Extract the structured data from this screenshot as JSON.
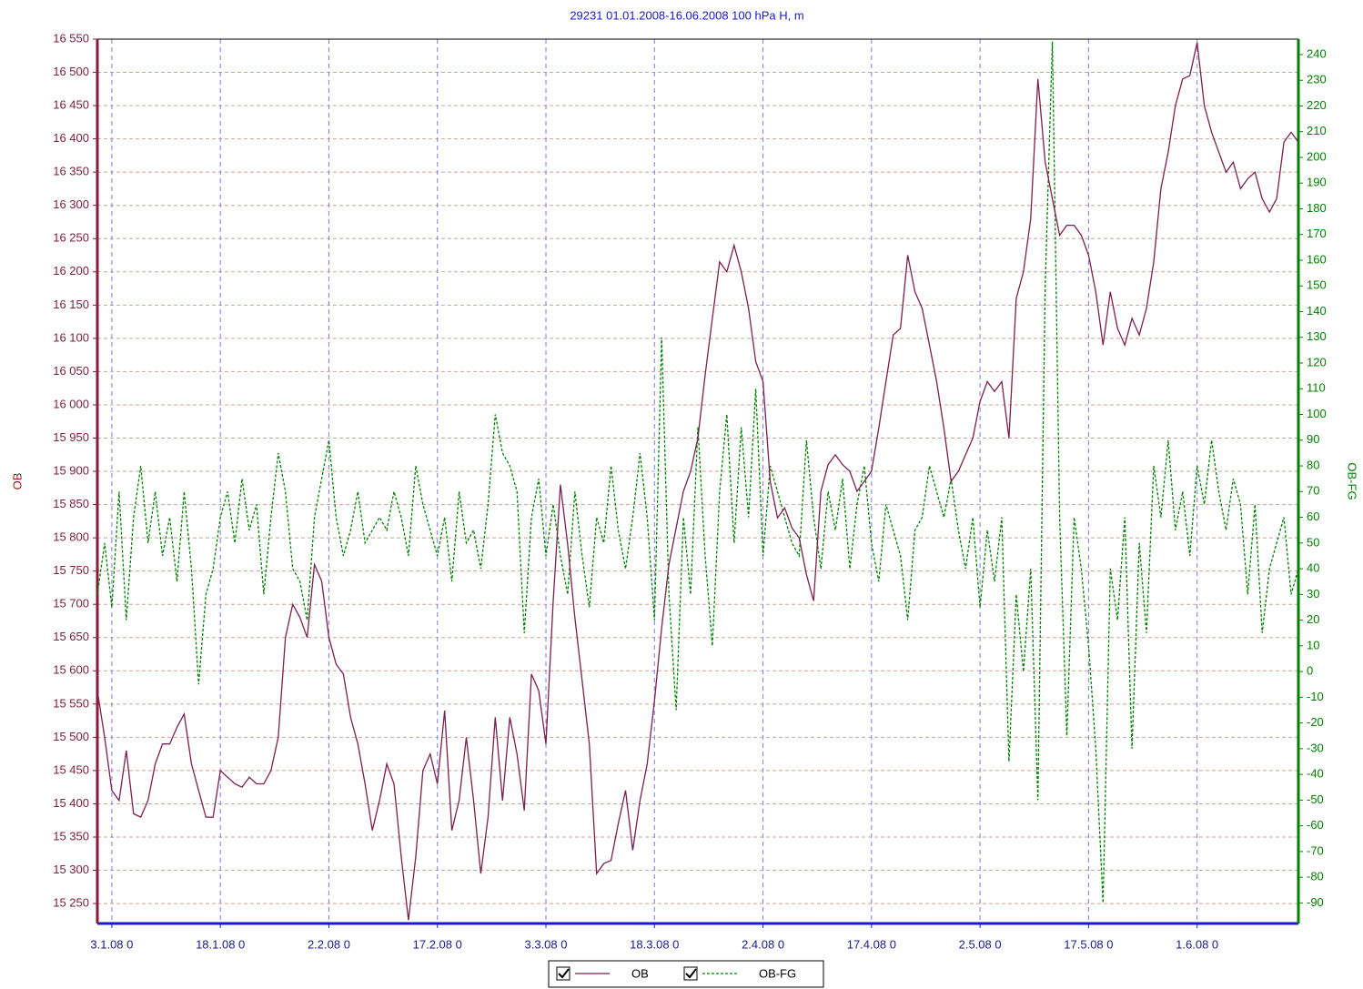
{
  "chart_data": {
    "type": "line",
    "title": "29231 01.01.2008-16.06.2008 100 hPa H, m",
    "y_label": "OB",
    "y2_label": "OB-FG",
    "x": [
      "2008-01-01T00",
      "2008-01-02T00",
      "2008-01-03T00",
      "2008-01-04T00",
      "2008-01-05T00",
      "2008-01-06T00",
      "2008-01-07T00",
      "2008-01-08T00",
      "2008-01-09T00",
      "2008-01-10T00",
      "2008-01-11T00",
      "2008-01-12T00",
      "2008-01-13T00",
      "2008-01-14T00",
      "2008-01-15T00",
      "2008-01-16T00",
      "2008-01-17T00",
      "2008-01-18T00",
      "2008-01-19T00",
      "2008-01-20T00",
      "2008-01-21T00",
      "2008-01-22T00",
      "2008-01-23T00",
      "2008-01-24T00",
      "2008-01-25T00",
      "2008-01-26T00",
      "2008-01-27T00",
      "2008-01-28T00",
      "2008-01-29T00",
      "2008-01-30T00",
      "2008-01-31T00",
      "2008-02-01T00",
      "2008-02-02T00",
      "2008-02-03T00",
      "2008-02-04T00",
      "2008-02-05T00",
      "2008-02-06T00",
      "2008-02-07T00",
      "2008-02-08T00",
      "2008-02-09T00",
      "2008-02-10T00",
      "2008-02-11T00",
      "2008-02-12T00",
      "2008-02-13T00",
      "2008-02-14T00",
      "2008-02-15T00",
      "2008-02-16T00",
      "2008-02-17T00",
      "2008-02-18T00",
      "2008-02-19T00",
      "2008-02-20T00",
      "2008-02-21T00",
      "2008-02-22T00",
      "2008-02-23T00",
      "2008-02-24T00",
      "2008-02-25T00",
      "2008-02-26T00",
      "2008-02-27T00",
      "2008-02-28T00",
      "2008-02-29T00",
      "2008-03-01T00",
      "2008-03-02T00",
      "2008-03-03T00",
      "2008-03-04T00",
      "2008-03-05T00",
      "2008-03-06T00",
      "2008-03-07T00",
      "2008-03-08T00",
      "2008-03-09T00",
      "2008-03-10T00",
      "2008-03-11T00",
      "2008-03-12T00",
      "2008-03-13T00",
      "2008-03-14T00",
      "2008-03-15T00",
      "2008-03-16T00",
      "2008-03-17T00",
      "2008-03-18T00",
      "2008-03-19T00",
      "2008-03-20T00",
      "2008-03-21T00",
      "2008-03-22T00",
      "2008-03-23T00",
      "2008-03-24T00",
      "2008-03-25T00",
      "2008-03-26T00",
      "2008-03-27T00",
      "2008-03-28T00",
      "2008-03-29T00",
      "2008-03-30T00",
      "2008-03-31T00",
      "2008-04-01T00",
      "2008-04-02T00",
      "2008-04-03T00",
      "2008-04-04T00",
      "2008-04-05T00",
      "2008-04-06T00",
      "2008-04-07T00",
      "2008-04-08T00",
      "2008-04-09T00",
      "2008-04-10T00",
      "2008-04-11T00",
      "2008-04-12T00",
      "2008-04-13T00",
      "2008-04-14T00",
      "2008-04-15T00",
      "2008-04-16T00",
      "2008-04-17T00",
      "2008-04-18T00",
      "2008-04-19T00",
      "2008-04-20T00",
      "2008-04-21T00",
      "2008-04-22T00",
      "2008-04-23T00",
      "2008-04-24T00",
      "2008-04-25T00",
      "2008-04-26T00",
      "2008-04-27T00",
      "2008-04-28T00",
      "2008-04-29T00",
      "2008-04-30T00",
      "2008-05-01T00",
      "2008-05-02T00",
      "2008-05-03T00",
      "2008-05-04T00",
      "2008-05-05T00",
      "2008-05-06T00",
      "2008-05-07T00",
      "2008-05-08T00",
      "2008-05-09T00",
      "2008-05-10T00",
      "2008-05-11T00",
      "2008-05-12T00",
      "2008-05-13T00",
      "2008-05-14T00",
      "2008-05-15T00",
      "2008-05-16T00",
      "2008-05-17T00",
      "2008-05-18T00",
      "2008-05-19T00",
      "2008-05-20T00",
      "2008-05-21T00",
      "2008-05-22T00",
      "2008-05-23T00",
      "2008-05-24T00",
      "2008-05-25T00",
      "2008-05-26T00",
      "2008-05-27T00",
      "2008-05-28T00",
      "2008-05-29T00",
      "2008-05-30T00",
      "2008-05-31T00",
      "2008-06-01T00",
      "2008-06-02T00",
      "2008-06-03T00",
      "2008-06-04T00",
      "2008-06-05T00",
      "2008-06-06T00",
      "2008-06-07T00",
      "2008-06-08T00",
      "2008-06-09T00",
      "2008-06-10T00",
      "2008-06-11T00",
      "2008-06-12T00",
      "2008-06-13T00",
      "2008-06-14T00",
      "2008-06-15T00"
    ],
    "series": [
      {
        "name": "OB",
        "color": "#7b1f4f",
        "line_style": "solid",
        "values": [
          15570,
          15500,
          15420,
          15405,
          15480,
          15385,
          15380,
          15405,
          15460,
          15490,
          15490,
          15515,
          15535,
          15460,
          15420,
          15380,
          15380,
          15450,
          15440,
          15430,
          15425,
          15440,
          15430,
          15430,
          15450,
          15500,
          15650,
          15700,
          15680,
          15650,
          15760,
          15735,
          15650,
          15610,
          15595,
          15530,
          15490,
          15430,
          15360,
          15405,
          15460,
          15430,
          15320,
          15225,
          15320,
          15450,
          15475,
          15430,
          15540,
          15360,
          15405,
          15500,
          15405,
          15295,
          15380,
          15530,
          15405,
          15530,
          15475,
          15390,
          15595,
          15570,
          15490,
          15705,
          15880,
          15790,
          15680,
          15585,
          15490,
          15295,
          15310,
          15315,
          15370,
          15420,
          15330,
          15405,
          15460,
          15555,
          15665,
          15760,
          15815,
          15870,
          15900,
          15950,
          16045,
          16130,
          16215,
          16200,
          16240,
          16200,
          16145,
          16065,
          16035,
          15885,
          15830,
          15845,
          15815,
          15800,
          15745,
          15705,
          15870,
          15910,
          15925,
          15910,
          15900,
          15870,
          15885,
          15900,
          15965,
          16035,
          16105,
          16115,
          16225,
          16170,
          16145,
          16090,
          16035,
          15965,
          15885,
          15900,
          15925,
          15950,
          16005,
          16035,
          16020,
          16035,
          15950,
          16160,
          16200,
          16280,
          16490,
          16365,
          16310,
          16255,
          16270,
          16270,
          16255,
          16225,
          16170,
          16090,
          16170,
          16115,
          16090,
          16130,
          16105,
          16145,
          16215,
          16325,
          16380,
          16450,
          16490,
          16495,
          16545,
          16450,
          16410,
          16380,
          16350,
          16365,
          16325,
          16340,
          16350,
          16310,
          16290,
          16310,
          16395,
          16410,
          16395
        ]
      },
      {
        "name": "OB-FG",
        "color": "#008000",
        "line_style": "dashed",
        "axis": "y2",
        "values": [
          30,
          50,
          25,
          70,
          20,
          60,
          80,
          50,
          70,
          45,
          60,
          35,
          70,
          40,
          -5,
          30,
          40,
          60,
          70,
          50,
          75,
          55,
          65,
          30,
          60,
          85,
          70,
          40,
          35,
          20,
          60,
          75,
          90,
          60,
          45,
          55,
          70,
          50,
          55,
          60,
          55,
          70,
          60,
          45,
          80,
          65,
          55,
          45,
          60,
          35,
          70,
          50,
          55,
          40,
          65,
          100,
          85,
          80,
          70,
          15,
          60,
          75,
          45,
          65,
          45,
          30,
          70,
          45,
          25,
          60,
          50,
          80,
          55,
          40,
          60,
          85,
          60,
          20,
          130,
          30,
          -15,
          60,
          30,
          95,
          45,
          10,
          70,
          100,
          50,
          95,
          60,
          110,
          45,
          80,
          70,
          60,
          50,
          45,
          90,
          60,
          40,
          70,
          55,
          75,
          40,
          65,
          80,
          50,
          35,
          65,
          55,
          45,
          20,
          55,
          60,
          80,
          70,
          60,
          75,
          55,
          40,
          60,
          25,
          55,
          35,
          60,
          -35,
          30,
          0,
          40,
          -50,
          150,
          245,
          60,
          -25,
          60,
          40,
          10,
          -30,
          -90,
          40,
          20,
          60,
          -30,
          50,
          15,
          80,
          60,
          90,
          55,
          70,
          45,
          80,
          65,
          90,
          70,
          55,
          75,
          65,
          30,
          65,
          15,
          40,
          50,
          60,
          30,
          40
        ]
      }
    ],
    "xlim": [
      "2008-01-01T00",
      "2008-06-15T00"
    ],
    "xticks": [
      {
        "value": "2008-01-03T00",
        "label": "3.1.08 0"
      },
      {
        "value": "2008-01-18T00",
        "label": "18.1.08 0"
      },
      {
        "value": "2008-02-02T00",
        "label": "2.2.08 0"
      },
      {
        "value": "2008-02-17T00",
        "label": "17.2.08 0"
      },
      {
        "value": "2008-03-03T00",
        "label": "3.3.08 0"
      },
      {
        "value": "2008-03-18T00",
        "label": "18.3.08 0"
      },
      {
        "value": "2008-04-02T00",
        "label": "2.4.08 0"
      },
      {
        "value": "2008-04-17T00",
        "label": "17.4.08 0"
      },
      {
        "value": "2008-05-02T00",
        "label": "2.5.08 0"
      },
      {
        "value": "2008-05-17T00",
        "label": "17.5.08 0"
      },
      {
        "value": "2008-06-01T00",
        "label": "1.6.08 0"
      }
    ],
    "ylim": [
      15220,
      16550
    ],
    "yticks": [
      {
        "value": 15250,
        "label": "15 250"
      },
      {
        "value": 15300,
        "label": "15 300"
      },
      {
        "value": 15350,
        "label": "15 350"
      },
      {
        "value": 15400,
        "label": "15 400"
      },
      {
        "value": 15450,
        "label": "15 450"
      },
      {
        "value": 15500,
        "label": "15 500"
      },
      {
        "value": 15550,
        "label": "15 550"
      },
      {
        "value": 15600,
        "label": "15 600"
      },
      {
        "value": 15650,
        "label": "15 650"
      },
      {
        "value": 15700,
        "label": "15 700"
      },
      {
        "value": 15750,
        "label": "15 750"
      },
      {
        "value": 15800,
        "label": "15 800"
      },
      {
        "value": 15850,
        "label": "15 850"
      },
      {
        "value": 15900,
        "label": "15 900"
      },
      {
        "value": 15950,
        "label": "15 950"
      },
      {
        "value": 16000,
        "label": "16 000"
      },
      {
        "value": 16050,
        "label": "16 050"
      },
      {
        "value": 16100,
        "label": "16 100"
      },
      {
        "value": 16150,
        "label": "16 150"
      },
      {
        "value": 16200,
        "label": "16 200"
      },
      {
        "value": 16250,
        "label": "16 250"
      },
      {
        "value": 16300,
        "label": "16 300"
      },
      {
        "value": 16350,
        "label": "16 350"
      },
      {
        "value": 16400,
        "label": "16 400"
      },
      {
        "value": 16450,
        "label": "16 450"
      },
      {
        "value": 16500,
        "label": "16 500"
      },
      {
        "value": 16550,
        "label": "16 550"
      }
    ],
    "y2lim": [
      -98,
      246
    ],
    "y2ticks": [
      -90,
      -80,
      -70,
      -60,
      -50,
      -40,
      -30,
      -20,
      -10,
      0,
      10,
      20,
      30,
      40,
      50,
      60,
      70,
      80,
      90,
      100,
      110,
      120,
      130,
      140,
      150,
      160,
      170,
      180,
      190,
      200,
      210,
      220,
      230,
      240
    ],
    "grid": true
  }
}
